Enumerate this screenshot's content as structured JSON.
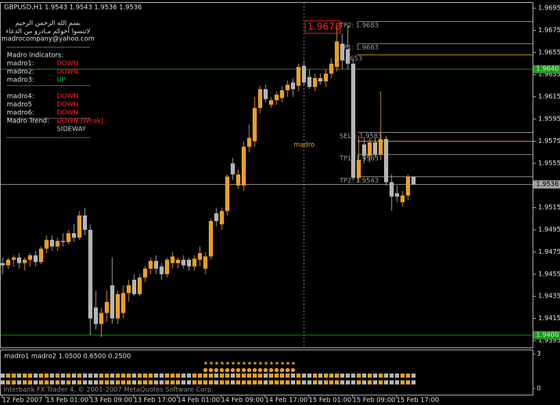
{
  "header": "GBPUSD,H1  1.9543 1.9543 1.9536 1.9536",
  "panel": {
    "lines": [
      "بسم الله الرحمن الرحيم",
      "لاتنسوا أخوكم مـادرو من الدعاء",
      "madrocompany@yahoo.com"
    ],
    "heading": "Madro Indicators:",
    "groups": [
      [
        {
          "name": "madro1:",
          "state": "DOWN",
          "color": "#ff2020"
        },
        {
          "name": "madro2:",
          "state": "DOWN",
          "color": "#ff2020"
        },
        {
          "name": "madro3:",
          "state": "UP",
          "color": "#20c020"
        }
      ],
      [
        {
          "name": "madro4:",
          "state": "DOWN",
          "color": "#ff2020"
        },
        {
          "name": "madro5",
          "state": "DOWN",
          "color": "#ff2020"
        },
        {
          "name": "madro6:",
          "state": "DOWN",
          "color": "#ff2020"
        }
      ]
    ],
    "trend": {
      "name": "Madro Trend:",
      "states": [
        {
          "text": "DOWN [Weak]",
          "color": "#ff2020"
        },
        {
          "text": "SIDEWAY",
          "color": "#c8c8c8"
        }
      ]
    }
  },
  "chart_data": {
    "type": "candlestick",
    "up_color": "#e8a020",
    "down_color": "#b4b4b4",
    "x": [
      "12 Feb 2007",
      null,
      null,
      null,
      null,
      null,
      null,
      null,
      "13 Feb 01:00",
      null,
      null,
      null,
      null,
      null,
      null,
      null,
      "13 Feb 09:00",
      null,
      null,
      null,
      null,
      null,
      null,
      null,
      "13 Feb 17:00",
      null,
      null,
      null,
      null,
      null,
      null,
      null,
      "14 Feb 01:00",
      null,
      null,
      null,
      null,
      null,
      null,
      null,
      "14 Feb 09:00",
      null,
      null,
      null,
      null,
      null,
      null,
      null,
      "14 Feb 17:00",
      null,
      null,
      null,
      null,
      null,
      null,
      null,
      "15 Feb 01:00",
      null,
      null,
      null,
      null,
      null,
      null,
      null,
      "15 Feb 09:00",
      null,
      null,
      null,
      null,
      null,
      null,
      null,
      "15 Feb 17:00",
      null,
      null,
      null
    ],
    "open": [
      1.9465,
      1.9463,
      1.9468,
      1.947,
      1.9465,
      1.9468,
      1.9472,
      1.9466,
      1.9478,
      1.9486,
      1.948,
      1.9485,
      1.9484,
      1.9492,
      1.9488,
      1.9508,
      1.9495,
      1.9425,
      1.941,
      1.942,
      1.9445,
      1.9415,
      1.942,
      1.9438,
      1.945,
      1.9437,
      1.9452,
      1.946,
      1.9467,
      1.9462,
      1.9455,
      1.9465,
      1.9465,
      1.9468,
      1.9468,
      1.9462,
      1.9468,
      1.946,
      1.9471,
      1.951,
      1.95,
      1.9512,
      1.9555,
      1.9535,
      1.9535,
      1.957,
      1.9575,
      1.9605,
      1.9622,
      1.9608,
      1.9612,
      1.9614,
      1.9621,
      1.9628,
      1.9625,
      1.9643,
      1.9633,
      1.9624,
      1.9632,
      1.9629,
      1.9636,
      1.9642,
      1.9663,
      1.9658,
      1.9645,
      1.9542,
      1.9572,
      1.9562,
      1.9574,
      1.9563,
      1.9577,
      1.9538,
      1.9528,
      1.952,
      1.9526,
      1.9543
    ],
    "high": [
      1.947,
      1.947,
      1.9472,
      1.9474,
      1.947,
      1.9474,
      1.9476,
      1.948,
      1.949,
      1.949,
      1.9488,
      1.9492,
      1.9495,
      1.95,
      1.9512,
      1.9515,
      1.95,
      1.944,
      1.9425,
      1.944,
      1.947,
      1.944,
      1.9445,
      1.945,
      1.9455,
      1.9455,
      1.9462,
      1.947,
      1.9472,
      1.9465,
      1.947,
      1.9475,
      1.947,
      1.9472,
      1.947,
      1.9472,
      1.948,
      1.9475,
      1.9505,
      1.9515,
      1.9515,
      1.9545,
      1.956,
      1.955,
      1.9575,
      1.959,
      1.9615,
      1.9625,
      1.9626,
      1.9615,
      1.962,
      1.9625,
      1.963,
      1.9632,
      1.9645,
      1.9648,
      1.964,
      1.9636,
      1.9636,
      1.964,
      1.965,
      1.9678,
      1.9672,
      1.968,
      1.965,
      1.958,
      1.9578,
      1.9578,
      1.9578,
      1.962,
      1.958,
      1.9545,
      1.9535,
      1.953,
      1.9545,
      1.9543
    ],
    "low": [
      1.9455,
      1.946,
      1.9462,
      1.946,
      1.9458,
      1.9462,
      1.9462,
      1.9464,
      1.9474,
      1.9476,
      1.9476,
      1.948,
      1.9482,
      1.9484,
      1.9486,
      1.949,
      1.94,
      1.9405,
      1.9398,
      1.9412,
      1.941,
      1.941,
      1.9415,
      1.943,
      1.9435,
      1.9435,
      1.9448,
      1.9455,
      1.9455,
      1.945,
      1.9452,
      1.946,
      1.946,
      1.946,
      1.9458,
      1.9458,
      1.9462,
      1.9455,
      1.9468,
      1.9498,
      1.9495,
      1.9508,
      1.954,
      1.9532,
      1.953,
      1.9565,
      1.957,
      1.96,
      1.961,
      1.9605,
      1.9608,
      1.961,
      1.9615,
      1.9615,
      1.962,
      1.9625,
      1.9622,
      1.962,
      1.9626,
      1.9624,
      1.9632,
      1.9638,
      1.964,
      1.964,
      1.954,
      1.9538,
      1.9555,
      1.9556,
      1.956,
      1.9558,
      1.9535,
      1.9512,
      1.952,
      1.9516,
      1.9522,
      1.9536
    ],
    "close": [
      1.9463,
      1.9468,
      1.947,
      1.9465,
      1.9468,
      1.9472,
      1.9466,
      1.9478,
      1.9486,
      1.948,
      1.9485,
      1.9484,
      1.9492,
      1.9488,
      1.9508,
      1.9495,
      1.9415,
      1.941,
      1.942,
      1.943,
      1.9415,
      1.9437,
      1.9438,
      1.9445,
      1.9437,
      1.9452,
      1.946,
      1.9467,
      1.946,
      1.9455,
      1.9468,
      1.9471,
      1.9468,
      1.9463,
      1.9462,
      1.9469,
      1.9474,
      1.9471,
      1.9503,
      1.9503,
      1.9512,
      1.9543,
      1.9545,
      1.9545,
      1.957,
      1.9578,
      1.9605,
      1.9622,
      1.9613,
      1.9612,
      1.9617,
      1.9621,
      1.9626,
      1.9622,
      1.9642,
      1.9628,
      1.9624,
      1.9632,
      1.9629,
      1.9636,
      1.9645,
      1.9665,
      1.9648,
      1.9645,
      1.9542,
      1.9558,
      1.9562,
      1.9574,
      1.9563,
      1.9577,
      1.9538,
      1.9525,
      1.9525,
      1.9526,
      1.9543,
      1.9536
    ],
    "ylim": [
      1.93888,
      1.97006
    ],
    "yticks": [
      1.9695,
      1.9675,
      1.9655,
      1.9635,
      1.9615,
      1.9595,
      1.9575,
      1.9555,
      1.9535,
      1.9515,
      1.9495,
      1.9475,
      1.9455,
      1.9435,
      1.9415,
      1.9395
    ],
    "axis_lines": [
      {
        "value": 1.964,
        "label": "1.9640",
        "color": "#1a9a1a"
      },
      {
        "value": 1.94,
        "label": "1.9400",
        "color": "#1a9a1a"
      },
      {
        "value": 1.9536,
        "label": "1.9536",
        "color": "#a0a0a0"
      }
    ],
    "targets": [
      {
        "value": 1.9683,
        "label": "TP2: 1.9683",
        "color": "#9a9a9a"
      },
      {
        "value": 1.9663,
        "label": "TP1: 1.9663",
        "color": "#9a9a9a"
      },
      {
        "value": 1.9653,
        "label": "1.9653",
        "color": "#e8a020"
      },
      {
        "value": 1.9583,
        "label": "SELL: 1.9583",
        "color": "#9a9a9a"
      },
      {
        "value": 1.9575,
        "color": "#e8a020"
      },
      {
        "value": 1.9563,
        "label": "TP1: 1.9563",
        "color": "#9a9a9a"
      },
      {
        "value": 1.9543,
        "label": "TP2: 1.9543",
        "color": "#9a9a9a"
      }
    ],
    "price_flag": {
      "value": 1.9678,
      "label": "1.9678"
    },
    "annotation": "madro"
  },
  "indicator_pane": {
    "legend": "madro1  madro2 1.0500 0.6500 0.2500",
    "ylim": [
      -0.6,
      3.4
    ],
    "yticks": [
      3,
      0
    ]
  },
  "footer": "Interbank FX Trader 4, © 2001-2007 MetaQuotes Software Corp."
}
